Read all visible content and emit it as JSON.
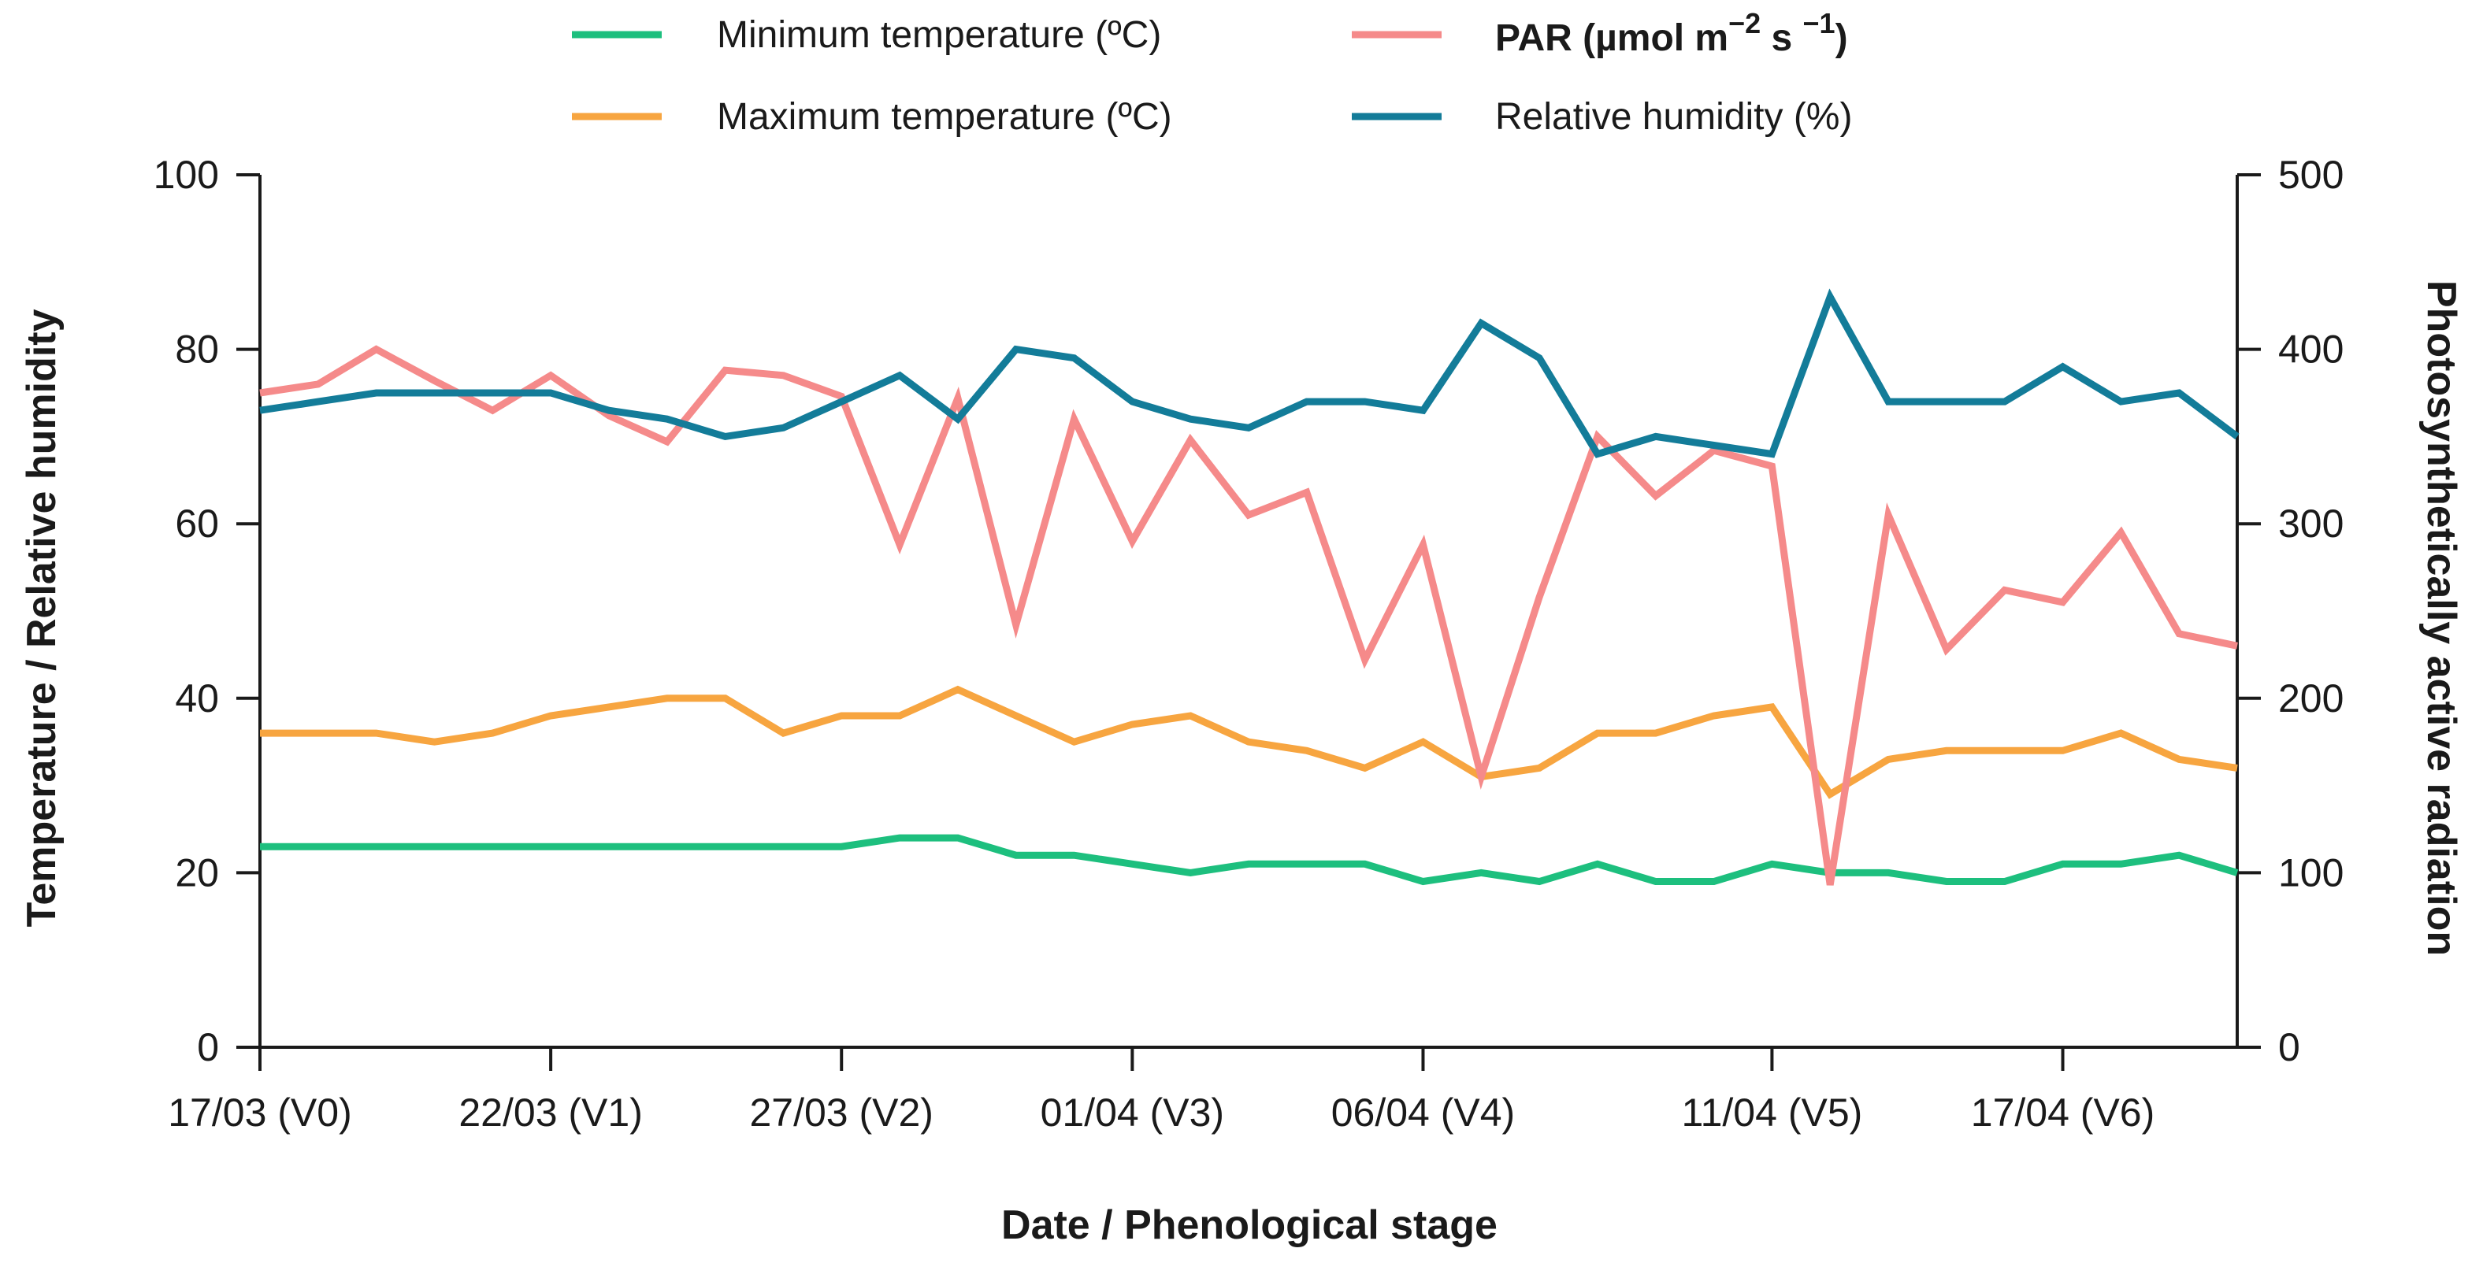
{
  "chart_data": {
    "type": "line",
    "title": "",
    "xlabel": "Date / Phenological stage",
    "ylabel_left": "Temperature / Relative humidity",
    "ylabel_right": "Photosynthetically active radiation",
    "ylim_left": [
      0,
      100
    ],
    "ylim_right": [
      0,
      500
    ],
    "yticks_left": [
      "0",
      "20",
      "40",
      "60",
      "80",
      "100"
    ],
    "yticks_right": [
      "0",
      "100",
      "200",
      "300",
      "400",
      "500"
    ],
    "x_count": 35,
    "x_ticks": [
      {
        "index": 0,
        "label": "17/03 (V0)"
      },
      {
        "index": 5,
        "label": "22/03 (V1)"
      },
      {
        "index": 10,
        "label": "27/03 (V2)"
      },
      {
        "index": 15,
        "label": "01/04 (V3)"
      },
      {
        "index": 20,
        "label": "06/04 (V4)"
      },
      {
        "index": 26,
        "label": "11/04 (V5)"
      },
      {
        "index": 31,
        "label": "17/04 (V6)"
      }
    ],
    "legend_position": "top",
    "series": [
      {
        "name": "Minimum temperature (ºC)",
        "axis": "left",
        "color": "#1dbf7e",
        "values": [
          23,
          23,
          23,
          23,
          23,
          23,
          23,
          23,
          23,
          23,
          23,
          24,
          24,
          22,
          22,
          21,
          20,
          21,
          21,
          21,
          19,
          20,
          19,
          21,
          19,
          19,
          21,
          20,
          20,
          19,
          19,
          21,
          21,
          22,
          20
        ]
      },
      {
        "name": "Maximum temperature (ºC)",
        "axis": "left",
        "color": "#f7a540",
        "values": [
          36,
          36,
          36,
          35,
          36,
          38,
          39,
          40,
          40,
          36,
          38,
          38,
          41,
          38,
          35,
          37,
          38,
          35,
          34,
          32,
          35,
          31,
          32,
          36,
          36,
          38,
          39,
          29,
          33,
          34,
          34,
          34,
          36,
          33,
          32
        ]
      },
      {
        "name": "PAR",
        "axis": "right",
        "color": "#f58a8a",
        "values": [
          375,
          380,
          400,
          382,
          365,
          385,
          362,
          347,
          388,
          385,
          373,
          288,
          372,
          242,
          360,
          290,
          348,
          305,
          318,
          222,
          288,
          155,
          258,
          350,
          316,
          342,
          333,
          93,
          305,
          228,
          262,
          255,
          295,
          237,
          230
        ]
      },
      {
        "name": "Relative humidity (%)",
        "axis": "left",
        "color": "#137c99",
        "values": [
          73,
          74,
          75,
          75,
          75,
          75,
          73,
          72,
          70,
          71,
          74,
          77,
          72,
          80,
          79,
          74,
          72,
          71,
          74,
          74,
          73,
          83,
          79,
          68,
          70,
          69,
          68,
          86,
          74,
          74,
          74,
          78,
          74,
          75,
          70
        ]
      }
    ],
    "legend": {
      "min_temp": "Minimum temperature (ºC)",
      "max_temp": "Maximum temperature (ºC)",
      "par_prefix": "PAR (µmol m",
      "par_exp1": "−2",
      "par_mid": " s ",
      "par_exp2": "−1",
      "par_suffix": ")",
      "rh": "Relative humidity (%)"
    }
  }
}
